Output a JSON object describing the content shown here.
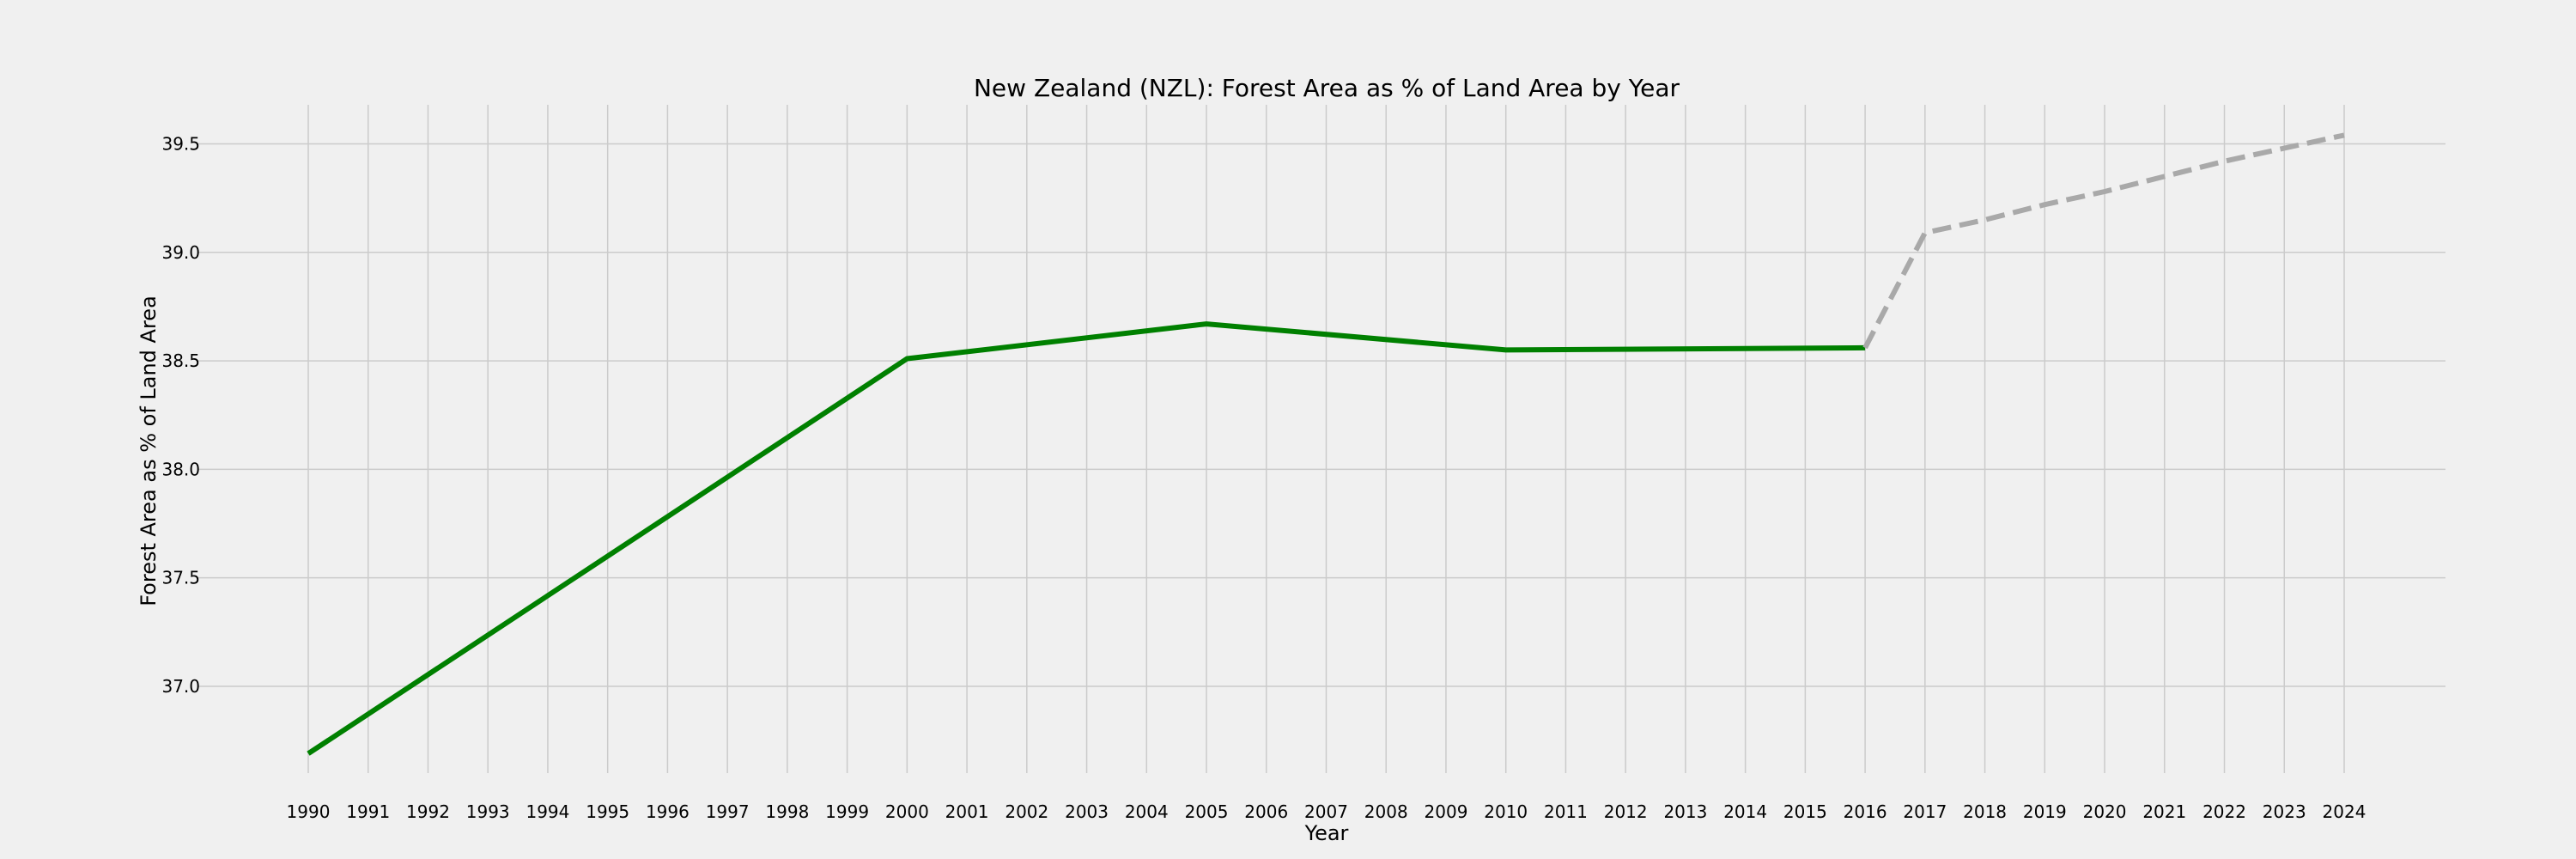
{
  "chart_data": {
    "type": "line",
    "title": "New Zealand (NZL): Forest Area as % of Land Area by Year",
    "xlabel": "Year",
    "ylabel": "Forest Area as % of Land Area",
    "xlim": [
      1990,
      2024
    ],
    "ylim": [
      36.6,
      39.68
    ],
    "x_ticks": [
      1990,
      1991,
      1992,
      1993,
      1994,
      1995,
      1996,
      1997,
      1998,
      1999,
      2000,
      2001,
      2002,
      2003,
      2004,
      2005,
      2006,
      2007,
      2008,
      2009,
      2010,
      2011,
      2012,
      2013,
      2014,
      2015,
      2016,
      2017,
      2018,
      2019,
      2020,
      2021,
      2022,
      2023,
      2024
    ],
    "y_ticks": [
      37.0,
      37.5,
      38.0,
      38.5,
      39.0,
      39.5
    ],
    "grid": true,
    "legend": "none",
    "series": [
      {
        "style": "solid",
        "color": "#008000",
        "x": [
          1990,
          2000,
          2005,
          2010,
          2016
        ],
        "y": [
          36.69,
          38.51,
          38.67,
          38.55,
          38.56
        ]
      },
      {
        "style": "dashed",
        "color": "#a9a9a9",
        "x": [
          2016,
          2017,
          2018,
          2019,
          2020,
          2021,
          2022,
          2023,
          2024
        ],
        "y": [
          38.56,
          39.09,
          39.15,
          39.22,
          39.28,
          39.35,
          39.42,
          39.48,
          39.54
        ]
      }
    ]
  }
}
